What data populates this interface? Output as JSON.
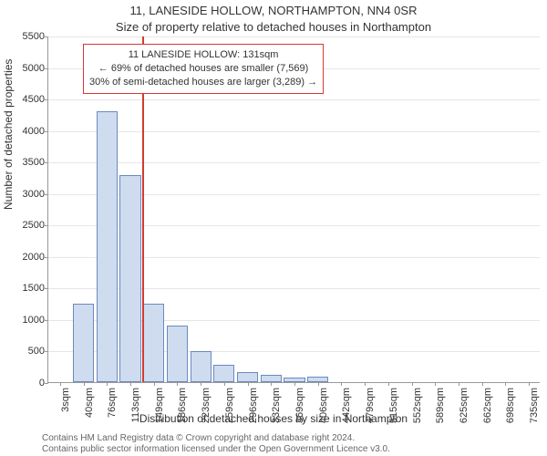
{
  "title_line1": "11, LANESIDE HOLLOW, NORTHAMPTON, NN4 0SR",
  "title_line2": "Size of property relative to detached houses in Northampton",
  "yaxis_label": "Number of detached properties",
  "xaxis_label": "Distribution of detached houses by size in Northampton",
  "footer_line1": "Contains HM Land Registry data © Crown copyright and database right 2024.",
  "footer_line2": "Contains public sector information licensed under the Open Government Licence v3.0.",
  "chart": {
    "type": "bar",
    "bar_fill": "#cfdcef",
    "bar_stroke": "#6a8bbd",
    "background_color": "#ffffff",
    "grid_color": "#e6e6e6",
    "axis_color": "#999999",
    "label_fontsize": 12,
    "tick_fontsize": 11,
    "ymax": 5500,
    "ytick_step": 500,
    "xticks": [
      "3sqm",
      "40sqm",
      "76sqm",
      "113sqm",
      "149sqm",
      "186sqm",
      "223sqm",
      "259sqm",
      "296sqm",
      "332sqm",
      "369sqm",
      "406sqm",
      "442sqm",
      "479sqm",
      "515sqm",
      "552sqm",
      "589sqm",
      "625sqm",
      "662sqm",
      "698sqm",
      "735sqm"
    ],
    "values": [
      0,
      1250,
      4300,
      3280,
      1250,
      900,
      490,
      280,
      160,
      110,
      70,
      90,
      0,
      0,
      0,
      0,
      0,
      0,
      0,
      0,
      0
    ],
    "reference_line": {
      "value_sqm": 131,
      "color": "#d33a2f"
    },
    "annotation": {
      "lines": [
        "11 LANESIDE HOLLOW: 131sqm",
        "← 69% of detached houses are smaller (7,569)",
        "30% of semi-detached houses are larger (3,289) →"
      ],
      "border_color": "#d33a2f",
      "background": "#ffffff"
    }
  }
}
